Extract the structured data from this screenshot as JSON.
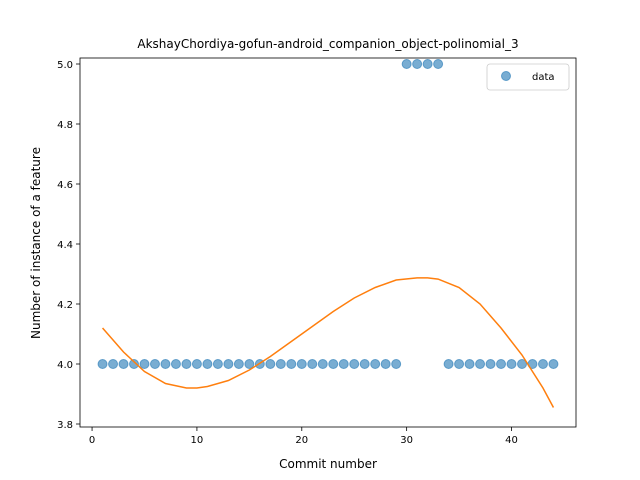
{
  "chart_data": {
    "type": "scatter",
    "title": "AkshayChordiya-gofun-android_companion_object-polinomial_3",
    "xlabel": "Commit number",
    "ylabel": "Number of instance of a feature",
    "xlim": [
      -1.15,
      46.15
    ],
    "ylim": [
      3.79,
      5.02
    ],
    "xticks": [
      0,
      10,
      20,
      30,
      40
    ],
    "yticks": [
      3.8,
      4.0,
      4.2,
      4.4,
      4.6,
      4.8,
      5.0
    ],
    "ytick_labels": [
      "3.8",
      "4.0",
      "4.2",
      "4.4",
      "4.6",
      "4.8",
      "5.0"
    ],
    "legend": {
      "position": "top-right",
      "label": "data"
    },
    "series": [
      {
        "name": "data",
        "kind": "scatter",
        "color": "#1f77b4",
        "x": [
          1,
          2,
          3,
          4,
          5,
          6,
          7,
          8,
          9,
          10,
          11,
          12,
          13,
          14,
          15,
          16,
          17,
          18,
          19,
          20,
          21,
          22,
          23,
          24,
          25,
          26,
          27,
          28,
          29,
          30,
          31,
          32,
          33,
          34,
          35,
          36,
          37,
          38,
          39,
          40,
          41,
          42,
          43,
          44
        ],
        "y": [
          4,
          4,
          4,
          4,
          4,
          4,
          4,
          4,
          4,
          4,
          4,
          4,
          4,
          4,
          4,
          4,
          4,
          4,
          4,
          4,
          4,
          4,
          4,
          4,
          4,
          4,
          4,
          4,
          4,
          5,
          5,
          5,
          5,
          4,
          4,
          4,
          4,
          4,
          4,
          4,
          4,
          4,
          4,
          4
        ]
      },
      {
        "kind": "line",
        "color": "#ff7f0e",
        "x": [
          1,
          3,
          5,
          7,
          9,
          10,
          11,
          13,
          15,
          17,
          19,
          21,
          23,
          25,
          27,
          29,
          31,
          32,
          33,
          35,
          37,
          39,
          41,
          43,
          44
        ],
        "y": [
          4.12,
          4.04,
          3.975,
          3.935,
          3.92,
          3.92,
          3.925,
          3.945,
          3.98,
          4.025,
          4.075,
          4.125,
          4.175,
          4.22,
          4.255,
          4.28,
          4.287,
          4.287,
          4.283,
          4.255,
          4.2,
          4.12,
          4.03,
          3.92,
          3.855
        ]
      }
    ]
  }
}
